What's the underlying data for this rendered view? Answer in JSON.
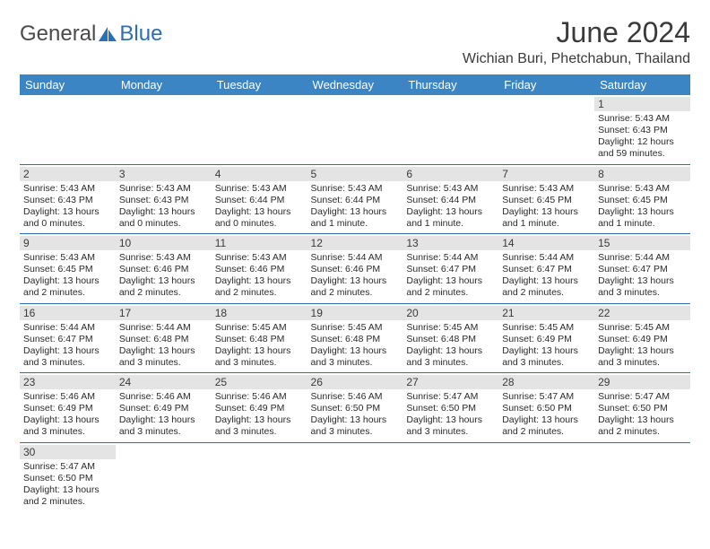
{
  "brand": {
    "part1": "General",
    "part2": "Blue"
  },
  "title": "June 2024",
  "location": "Wichian Buri, Phetchabun, Thailand",
  "colors": {
    "header_bg": "#3b85c4",
    "header_text": "#ffffff",
    "daynum_bg": "#e4e4e4",
    "rule": "#2d6fb0",
    "brand_gray": "#4a4a4a",
    "brand_blue": "#2d6fb0"
  },
  "weekdays": [
    "Sunday",
    "Monday",
    "Tuesday",
    "Wednesday",
    "Thursday",
    "Friday",
    "Saturday"
  ],
  "weeks": [
    [
      {
        "n": "",
        "sr": "",
        "ss": "",
        "dl": ""
      },
      {
        "n": "",
        "sr": "",
        "ss": "",
        "dl": ""
      },
      {
        "n": "",
        "sr": "",
        "ss": "",
        "dl": ""
      },
      {
        "n": "",
        "sr": "",
        "ss": "",
        "dl": ""
      },
      {
        "n": "",
        "sr": "",
        "ss": "",
        "dl": ""
      },
      {
        "n": "",
        "sr": "",
        "ss": "",
        "dl": ""
      },
      {
        "n": "1",
        "sr": "Sunrise: 5:43 AM",
        "ss": "Sunset: 6:43 PM",
        "dl": "Daylight: 12 hours and 59 minutes."
      }
    ],
    [
      {
        "n": "2",
        "sr": "Sunrise: 5:43 AM",
        "ss": "Sunset: 6:43 PM",
        "dl": "Daylight: 13 hours and 0 minutes."
      },
      {
        "n": "3",
        "sr": "Sunrise: 5:43 AM",
        "ss": "Sunset: 6:43 PM",
        "dl": "Daylight: 13 hours and 0 minutes."
      },
      {
        "n": "4",
        "sr": "Sunrise: 5:43 AM",
        "ss": "Sunset: 6:44 PM",
        "dl": "Daylight: 13 hours and 0 minutes."
      },
      {
        "n": "5",
        "sr": "Sunrise: 5:43 AM",
        "ss": "Sunset: 6:44 PM",
        "dl": "Daylight: 13 hours and 1 minute."
      },
      {
        "n": "6",
        "sr": "Sunrise: 5:43 AM",
        "ss": "Sunset: 6:44 PM",
        "dl": "Daylight: 13 hours and 1 minute."
      },
      {
        "n": "7",
        "sr": "Sunrise: 5:43 AM",
        "ss": "Sunset: 6:45 PM",
        "dl": "Daylight: 13 hours and 1 minute."
      },
      {
        "n": "8",
        "sr": "Sunrise: 5:43 AM",
        "ss": "Sunset: 6:45 PM",
        "dl": "Daylight: 13 hours and 1 minute."
      }
    ],
    [
      {
        "n": "9",
        "sr": "Sunrise: 5:43 AM",
        "ss": "Sunset: 6:45 PM",
        "dl": "Daylight: 13 hours and 2 minutes."
      },
      {
        "n": "10",
        "sr": "Sunrise: 5:43 AM",
        "ss": "Sunset: 6:46 PM",
        "dl": "Daylight: 13 hours and 2 minutes."
      },
      {
        "n": "11",
        "sr": "Sunrise: 5:43 AM",
        "ss": "Sunset: 6:46 PM",
        "dl": "Daylight: 13 hours and 2 minutes."
      },
      {
        "n": "12",
        "sr": "Sunrise: 5:44 AM",
        "ss": "Sunset: 6:46 PM",
        "dl": "Daylight: 13 hours and 2 minutes."
      },
      {
        "n": "13",
        "sr": "Sunrise: 5:44 AM",
        "ss": "Sunset: 6:47 PM",
        "dl": "Daylight: 13 hours and 2 minutes."
      },
      {
        "n": "14",
        "sr": "Sunrise: 5:44 AM",
        "ss": "Sunset: 6:47 PM",
        "dl": "Daylight: 13 hours and 2 minutes."
      },
      {
        "n": "15",
        "sr": "Sunrise: 5:44 AM",
        "ss": "Sunset: 6:47 PM",
        "dl": "Daylight: 13 hours and 3 minutes."
      }
    ],
    [
      {
        "n": "16",
        "sr": "Sunrise: 5:44 AM",
        "ss": "Sunset: 6:47 PM",
        "dl": "Daylight: 13 hours and 3 minutes."
      },
      {
        "n": "17",
        "sr": "Sunrise: 5:44 AM",
        "ss": "Sunset: 6:48 PM",
        "dl": "Daylight: 13 hours and 3 minutes."
      },
      {
        "n": "18",
        "sr": "Sunrise: 5:45 AM",
        "ss": "Sunset: 6:48 PM",
        "dl": "Daylight: 13 hours and 3 minutes."
      },
      {
        "n": "19",
        "sr": "Sunrise: 5:45 AM",
        "ss": "Sunset: 6:48 PM",
        "dl": "Daylight: 13 hours and 3 minutes."
      },
      {
        "n": "20",
        "sr": "Sunrise: 5:45 AM",
        "ss": "Sunset: 6:48 PM",
        "dl": "Daylight: 13 hours and 3 minutes."
      },
      {
        "n": "21",
        "sr": "Sunrise: 5:45 AM",
        "ss": "Sunset: 6:49 PM",
        "dl": "Daylight: 13 hours and 3 minutes."
      },
      {
        "n": "22",
        "sr": "Sunrise: 5:45 AM",
        "ss": "Sunset: 6:49 PM",
        "dl": "Daylight: 13 hours and 3 minutes."
      }
    ],
    [
      {
        "n": "23",
        "sr": "Sunrise: 5:46 AM",
        "ss": "Sunset: 6:49 PM",
        "dl": "Daylight: 13 hours and 3 minutes."
      },
      {
        "n": "24",
        "sr": "Sunrise: 5:46 AM",
        "ss": "Sunset: 6:49 PM",
        "dl": "Daylight: 13 hours and 3 minutes."
      },
      {
        "n": "25",
        "sr": "Sunrise: 5:46 AM",
        "ss": "Sunset: 6:49 PM",
        "dl": "Daylight: 13 hours and 3 minutes."
      },
      {
        "n": "26",
        "sr": "Sunrise: 5:46 AM",
        "ss": "Sunset: 6:50 PM",
        "dl": "Daylight: 13 hours and 3 minutes."
      },
      {
        "n": "27",
        "sr": "Sunrise: 5:47 AM",
        "ss": "Sunset: 6:50 PM",
        "dl": "Daylight: 13 hours and 3 minutes."
      },
      {
        "n": "28",
        "sr": "Sunrise: 5:47 AM",
        "ss": "Sunset: 6:50 PM",
        "dl": "Daylight: 13 hours and 2 minutes."
      },
      {
        "n": "29",
        "sr": "Sunrise: 5:47 AM",
        "ss": "Sunset: 6:50 PM",
        "dl": "Daylight: 13 hours and 2 minutes."
      }
    ],
    [
      {
        "n": "30",
        "sr": "Sunrise: 5:47 AM",
        "ss": "Sunset: 6:50 PM",
        "dl": "Daylight: 13 hours and 2 minutes."
      },
      {
        "n": "",
        "sr": "",
        "ss": "",
        "dl": ""
      },
      {
        "n": "",
        "sr": "",
        "ss": "",
        "dl": ""
      },
      {
        "n": "",
        "sr": "",
        "ss": "",
        "dl": ""
      },
      {
        "n": "",
        "sr": "",
        "ss": "",
        "dl": ""
      },
      {
        "n": "",
        "sr": "",
        "ss": "",
        "dl": ""
      },
      {
        "n": "",
        "sr": "",
        "ss": "",
        "dl": ""
      }
    ]
  ]
}
